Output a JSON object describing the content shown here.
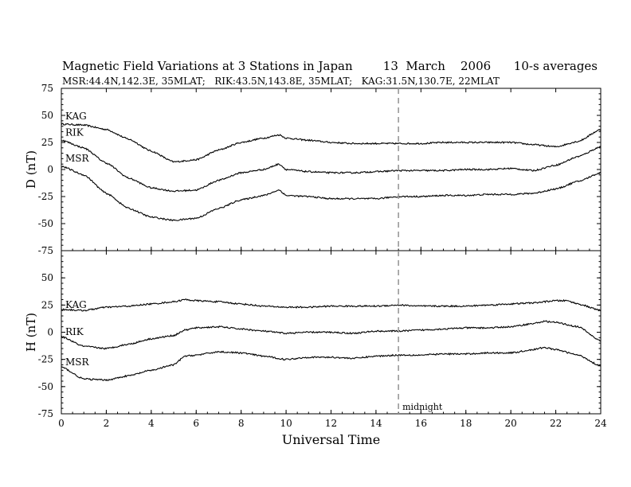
{
  "title": "Magnetic Field Variations at 3 Stations in Japan        13  March    2006      10-s averages",
  "subtitle": "MSR:44.4N,142.3E, 35MLAT;   RIK:43.5N,143.8E, 35MLAT;   KAG:31.5N,130.7E, 22MLAT",
  "chart_data": [
    {
      "type": "line",
      "ylabel": "D  (nT)",
      "xlabel": "",
      "xlim": [
        0,
        24
      ],
      "ylim": [
        -75,
        75
      ],
      "yticks": [
        -75,
        -50,
        -25,
        0,
        25,
        50,
        75
      ],
      "xticks": [
        0,
        2,
        4,
        6,
        8,
        10,
        12,
        14,
        16,
        18,
        20,
        22,
        24
      ],
      "series": [
        {
          "name": "KAG",
          "x": [
            0,
            1,
            2,
            3,
            4,
            5,
            6,
            7,
            8,
            9,
            9.7,
            10,
            11,
            12,
            13,
            14,
            15,
            16,
            17,
            18,
            19,
            20,
            21,
            22,
            23,
            24
          ],
          "y": [
            42,
            41,
            37,
            28,
            17,
            7,
            9,
            18,
            25,
            29,
            32,
            29,
            27,
            25,
            24,
            24,
            24,
            24,
            25,
            25,
            25,
            25,
            23,
            21,
            26,
            37
          ]
        },
        {
          "name": "RIK",
          "x": [
            0,
            1,
            2,
            3,
            4,
            5,
            6,
            7,
            8,
            9,
            9.7,
            10,
            11,
            12,
            13,
            14,
            15,
            16,
            17,
            18,
            19,
            20,
            21,
            22,
            23,
            24
          ],
          "y": [
            27,
            20,
            6,
            -8,
            -17,
            -20,
            -19,
            -10,
            -3,
            0,
            5,
            0,
            -2,
            -3,
            -3,
            -2,
            -1,
            -1,
            -1,
            0,
            0,
            1,
            -1,
            4,
            12,
            21
          ]
        },
        {
          "name": "MSR",
          "x": [
            0,
            1,
            2,
            3,
            4,
            5,
            6,
            7,
            8,
            9,
            9.7,
            10,
            11,
            12,
            13,
            14,
            15,
            16,
            17,
            18,
            19,
            20,
            21,
            22,
            23,
            24
          ],
          "y": [
            3,
            -5,
            -22,
            -36,
            -44,
            -47,
            -45,
            -36,
            -28,
            -24,
            -19,
            -24,
            -25,
            -27,
            -27,
            -27,
            -25,
            -25,
            -24,
            -24,
            -23,
            -23,
            -22,
            -18,
            -11,
            -3
          ]
        }
      ]
    },
    {
      "type": "line",
      "ylabel": "H  (nT)",
      "xlabel": "Universal Time",
      "xlim": [
        0,
        24
      ],
      "ylim": [
        -75,
        75
      ],
      "yticks": [
        -75,
        -50,
        -25,
        0,
        25,
        50,
        75
      ],
      "xticks": [
        0,
        2,
        4,
        6,
        8,
        10,
        12,
        14,
        16,
        18,
        20,
        22,
        24
      ],
      "series": [
        {
          "name": "KAG",
          "x": [
            0,
            1,
            2,
            3,
            4,
            5,
            5.5,
            6,
            7,
            8,
            9,
            10,
            11,
            12,
            13,
            14,
            15,
            16,
            17,
            18,
            19,
            20,
            21,
            22,
            22.5,
            23,
            24
          ],
          "y": [
            21,
            20,
            23,
            24,
            26,
            28,
            30,
            29,
            28,
            26,
            24,
            23,
            23,
            24,
            24,
            24,
            25,
            24,
            24,
            24,
            25,
            26,
            27,
            29,
            29,
            26,
            20
          ]
        },
        {
          "name": "RIK",
          "x": [
            0,
            1,
            2,
            3,
            4,
            5,
            5.5,
            6,
            7,
            8,
            9,
            10,
            11,
            12,
            13,
            14,
            15,
            16,
            17,
            18,
            19,
            20,
            21,
            21.5,
            22,
            23,
            24
          ],
          "y": [
            -4,
            -13,
            -15,
            -11,
            -6,
            -3,
            2,
            4,
            5,
            3,
            1,
            -1,
            0,
            0,
            -1,
            1,
            1,
            2,
            3,
            4,
            4,
            5,
            8,
            10,
            9,
            5,
            -8
          ]
        },
        {
          "name": "MSR",
          "x": [
            0,
            1,
            2,
            3,
            4,
            5,
            5.5,
            6,
            7,
            8,
            9,
            10,
            11,
            12,
            13,
            14,
            15,
            16,
            17,
            18,
            19,
            20,
            21,
            21.5,
            22,
            23,
            24
          ],
          "y": [
            -32,
            -43,
            -44,
            -40,
            -35,
            -30,
            -22,
            -21,
            -18,
            -19,
            -22,
            -25,
            -23,
            -23,
            -24,
            -22,
            -21,
            -21,
            -20,
            -20,
            -19,
            -19,
            -16,
            -14,
            -16,
            -21,
            -31
          ]
        }
      ]
    }
  ],
  "annotations": {
    "midnight_label": "midnight",
    "midnight_ut": 15
  },
  "colors": {
    "trace": "#000000",
    "midnight_line": "#999999"
  }
}
